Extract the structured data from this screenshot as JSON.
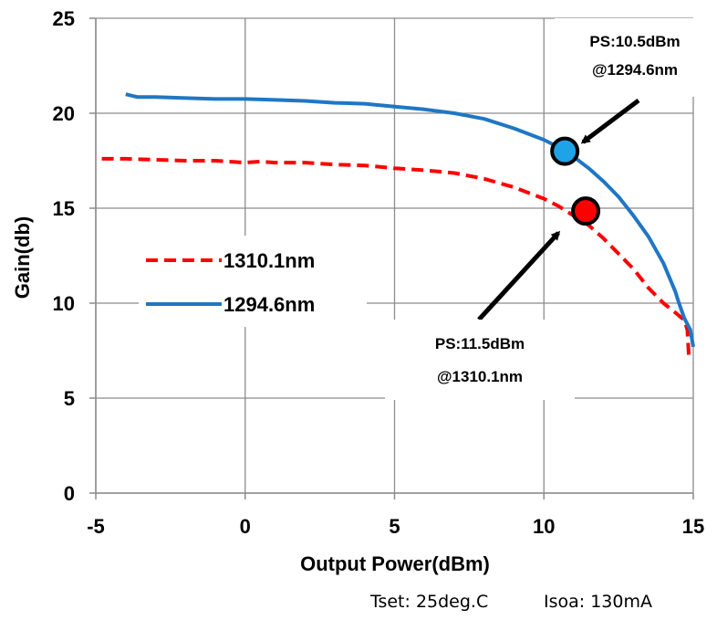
{
  "chart_data": {
    "type": "line",
    "title": "",
    "xlabel": "Output Power(dBm)",
    "ylabel": "Gain(db)",
    "xlim": [
      -5,
      15
    ],
    "ylim": [
      0,
      25
    ],
    "xticks": [
      "-5",
      "0",
      "5",
      "10",
      "15"
    ],
    "yticks": [
      "0",
      "5",
      "10",
      "15",
      "20",
      "25"
    ],
    "grid": true,
    "legend_position": "center-left",
    "series": [
      {
        "name": "1310.1nm",
        "color": "#ff0000",
        "style": "dashed",
        "points": [
          [
            -4.8,
            17.6
          ],
          [
            -4.0,
            17.6
          ],
          [
            -3.0,
            17.55
          ],
          [
            -2.0,
            17.5
          ],
          [
            -1.0,
            17.5
          ],
          [
            0.0,
            17.4
          ],
          [
            0.5,
            17.45
          ],
          [
            1.0,
            17.4
          ],
          [
            2.0,
            17.4
          ],
          [
            3.0,
            17.3
          ],
          [
            4.0,
            17.25
          ],
          [
            5.0,
            17.1
          ],
          [
            6.0,
            17.0
          ],
          [
            7.0,
            16.85
          ],
          [
            8.0,
            16.55
          ],
          [
            9.0,
            16.1
          ],
          [
            10.0,
            15.5
          ],
          [
            10.5,
            15.1
          ],
          [
            11.0,
            14.6
          ],
          [
            11.5,
            14.1
          ],
          [
            12.0,
            13.4
          ],
          [
            12.5,
            12.6
          ],
          [
            13.0,
            11.8
          ],
          [
            13.5,
            10.8
          ],
          [
            14.0,
            10.0
          ],
          [
            14.4,
            9.5
          ],
          [
            14.7,
            9.1
          ],
          [
            14.8,
            8.6
          ],
          [
            14.85,
            7.2
          ]
        ]
      },
      {
        "name": "1294.6nm",
        "color": "#1f77c4",
        "style": "solid",
        "points": [
          [
            -4.0,
            21.0
          ],
          [
            -3.6,
            20.85
          ],
          [
            -3.0,
            20.85
          ],
          [
            -2.0,
            20.8
          ],
          [
            -1.0,
            20.75
          ],
          [
            0.0,
            20.75
          ],
          [
            1.0,
            20.7
          ],
          [
            2.0,
            20.65
          ],
          [
            3.0,
            20.55
          ],
          [
            4.0,
            20.5
          ],
          [
            5.0,
            20.35
          ],
          [
            6.0,
            20.2
          ],
          [
            7.0,
            20.0
          ],
          [
            8.0,
            19.7
          ],
          [
            9.0,
            19.2
          ],
          [
            10.0,
            18.6
          ],
          [
            10.5,
            18.2
          ],
          [
            11.0,
            17.7
          ],
          [
            11.5,
            17.1
          ],
          [
            12.0,
            16.4
          ],
          [
            12.5,
            15.6
          ],
          [
            13.0,
            14.6
          ],
          [
            13.5,
            13.5
          ],
          [
            14.0,
            12.1
          ],
          [
            14.4,
            10.6
          ],
          [
            14.5,
            10.1
          ],
          [
            14.7,
            9.2
          ],
          [
            14.9,
            8.6
          ],
          [
            15.0,
            7.7
          ]
        ]
      }
    ],
    "markers": [
      {
        "name": "ps-1294",
        "x": 10.7,
        "y": 18.0,
        "color": "#1fa3e8"
      },
      {
        "name": "ps-1310",
        "x": 11.4,
        "y": 14.85,
        "color": "#ff0000"
      }
    ],
    "annotations": [
      {
        "line1": "PS:10.5dBm",
        "line2": "@1294.6nm"
      },
      {
        "line1": "PS:11.5dBm",
        "line2": "@1310.1nm"
      }
    ]
  },
  "footnote": {
    "tset": "Tset: 25deg.C",
    "isoa": "Isoa: 130mA"
  }
}
